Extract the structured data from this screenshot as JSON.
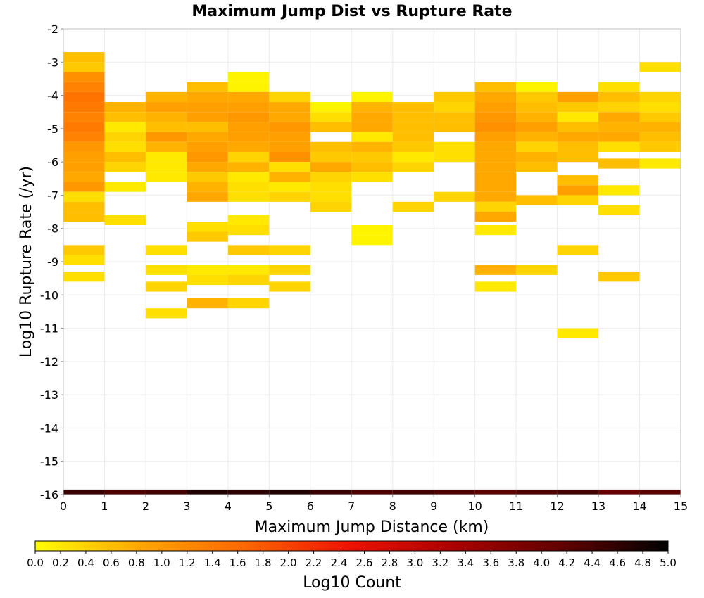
{
  "chart_data": {
    "type": "heatmap",
    "title": "Maximum Jump Dist vs Rupture Rate",
    "xlabel": "Maximum Jump Distance (km)",
    "ylabel": "Log10 Rupture Rate (/yr)",
    "xlim": [
      0,
      15
    ],
    "ylim": [
      -16,
      -2
    ],
    "x_ticks": [
      "0",
      "1",
      "2",
      "3",
      "4",
      "5",
      "6",
      "7",
      "8",
      "9",
      "10",
      "11",
      "12",
      "13",
      "14",
      "15"
    ],
    "y_ticks": [
      "-2",
      "-3",
      "-4",
      "-5",
      "-6",
      "-7",
      "-8",
      "-9",
      "-10",
      "-11",
      "-12",
      "-13",
      "-14",
      "-15",
      "-16"
    ],
    "x_bin_width": 1,
    "y_bin_height": 0.3,
    "grid": true,
    "colorbar": {
      "label": "Log10 Count",
      "min": 0.0,
      "max": 5.0,
      "ticks": [
        "0.0",
        "0.2",
        "0.4",
        "0.6",
        "0.8",
        "1.0",
        "1.2",
        "1.4",
        "1.6",
        "1.8",
        "2.0",
        "2.2",
        "2.4",
        "2.6",
        "2.8",
        "3.0",
        "3.2",
        "3.4",
        "3.6",
        "3.8",
        "4.0",
        "4.2",
        "4.4",
        "4.6",
        "4.8",
        "5.0"
      ],
      "colors": [
        "#ffff00",
        "#ffa500",
        "#ff6600",
        "#ee1100",
        "#aa0000",
        "#600000",
        "#000000"
      ]
    },
    "cells": [
      {
        "x": 0,
        "y0": -3.0,
        "y1": -2.7,
        "v": 0.6
      },
      {
        "x": 0,
        "y0": -3.3,
        "y1": -3.0,
        "v": 0.5
      },
      {
        "x": 0,
        "y0": -3.6,
        "y1": -3.3,
        "v": 1.1
      },
      {
        "x": 0,
        "y0": -3.9,
        "y1": -3.6,
        "v": 1.3
      },
      {
        "x": 0,
        "y0": -4.2,
        "y1": -3.9,
        "v": 1.5
      },
      {
        "x": 0,
        "y0": -4.5,
        "y1": -4.2,
        "v": 1.4
      },
      {
        "x": 0,
        "y0": -4.8,
        "y1": -4.5,
        "v": 1.3
      },
      {
        "x": 0,
        "y0": -5.1,
        "y1": -4.8,
        "v": 1.4
      },
      {
        "x": 0,
        "y0": -5.4,
        "y1": -5.1,
        "v": 1.3
      },
      {
        "x": 0,
        "y0": -5.7,
        "y1": -5.4,
        "v": 1.0
      },
      {
        "x": 0,
        "y0": -6.0,
        "y1": -5.7,
        "v": 0.9
      },
      {
        "x": 0,
        "y0": -6.3,
        "y1": -6.0,
        "v": 0.9
      },
      {
        "x": 0,
        "y0": -6.6,
        "y1": -6.3,
        "v": 0.8
      },
      {
        "x": 0,
        "y0": -6.9,
        "y1": -6.6,
        "v": 1.0
      },
      {
        "x": 0,
        "y0": -7.2,
        "y1": -6.9,
        "v": 0.3
      },
      {
        "x": 0,
        "y0": -7.5,
        "y1": -7.2,
        "v": 0.6
      },
      {
        "x": 0,
        "y0": -7.8,
        "y1": -7.5,
        "v": 0.6
      },
      {
        "x": 0,
        "y0": -8.8,
        "y1": -8.5,
        "v": 0.5
      },
      {
        "x": 0,
        "y0": -9.1,
        "y1": -8.8,
        "v": 0.3
      },
      {
        "x": 0,
        "y0": -9.6,
        "y1": -9.3,
        "v": 0.3
      },
      {
        "x": 1,
        "y0": -4.5,
        "y1": -4.2,
        "v": 0.7
      },
      {
        "x": 1,
        "y0": -4.8,
        "y1": -4.5,
        "v": 0.6
      },
      {
        "x": 1,
        "y0": -5.1,
        "y1": -4.8,
        "v": 0.2
      },
      {
        "x": 1,
        "y0": -5.4,
        "y1": -5.1,
        "v": 0.4
      },
      {
        "x": 1,
        "y0": -5.7,
        "y1": -5.4,
        "v": 0.3
      },
      {
        "x": 1,
        "y0": -6.0,
        "y1": -5.7,
        "v": 0.6
      },
      {
        "x": 1,
        "y0": -6.3,
        "y1": -6.0,
        "v": 0.4
      },
      {
        "x": 1,
        "y0": -6.9,
        "y1": -6.6,
        "v": 0.2
      },
      {
        "x": 1,
        "y0": -7.9,
        "y1": -7.6,
        "v": 0.3
      },
      {
        "x": 2,
        "y0": -4.2,
        "y1": -3.9,
        "v": 0.7
      },
      {
        "x": 2,
        "y0": -4.5,
        "y1": -4.2,
        "v": 0.9
      },
      {
        "x": 2,
        "y0": -4.8,
        "y1": -4.5,
        "v": 0.7
      },
      {
        "x": 2,
        "y0": -5.1,
        "y1": -4.8,
        "v": 0.6
      },
      {
        "x": 2,
        "y0": -5.4,
        "y1": -5.1,
        "v": 1.0
      },
      {
        "x": 2,
        "y0": -5.7,
        "y1": -5.4,
        "v": 0.7
      },
      {
        "x": 2,
        "y0": -6.0,
        "y1": -5.7,
        "v": 0.2
      },
      {
        "x": 2,
        "y0": -6.3,
        "y1": -6.0,
        "v": 0.2
      },
      {
        "x": 2,
        "y0": -6.6,
        "y1": -6.3,
        "v": 0.2
      },
      {
        "x": 2,
        "y0": -8.8,
        "y1": -8.5,
        "v": 0.3
      },
      {
        "x": 2,
        "y0": -9.4,
        "y1": -9.1,
        "v": 0.3
      },
      {
        "x": 2,
        "y0": -9.9,
        "y1": -9.6,
        "v": 0.4
      },
      {
        "x": 2,
        "y0": -10.7,
        "y1": -10.4,
        "v": 0.3
      },
      {
        "x": 3,
        "y0": -3.9,
        "y1": -3.6,
        "v": 0.6
      },
      {
        "x": 3,
        "y0": -4.2,
        "y1": -3.9,
        "v": 0.8
      },
      {
        "x": 3,
        "y0": -4.5,
        "y1": -4.2,
        "v": 0.9
      },
      {
        "x": 3,
        "y0": -4.8,
        "y1": -4.5,
        "v": 0.9
      },
      {
        "x": 3,
        "y0": -5.1,
        "y1": -4.8,
        "v": 0.6
      },
      {
        "x": 3,
        "y0": -5.4,
        "y1": -5.1,
        "v": 0.8
      },
      {
        "x": 3,
        "y0": -5.7,
        "y1": -5.4,
        "v": 0.9
      },
      {
        "x": 3,
        "y0": -6.0,
        "y1": -5.7,
        "v": 1.0
      },
      {
        "x": 3,
        "y0": -6.3,
        "y1": -6.0,
        "v": 0.8
      },
      {
        "x": 3,
        "y0": -6.6,
        "y1": -6.3,
        "v": 0.5
      },
      {
        "x": 3,
        "y0": -6.9,
        "y1": -6.6,
        "v": 0.7
      },
      {
        "x": 3,
        "y0": -7.2,
        "y1": -6.9,
        "v": 0.8
      },
      {
        "x": 3,
        "y0": -8.1,
        "y1": -7.8,
        "v": 0.3
      },
      {
        "x": 3,
        "y0": -8.4,
        "y1": -8.1,
        "v": 0.5
      },
      {
        "x": 3,
        "y0": -9.4,
        "y1": -9.1,
        "v": 0.2
      },
      {
        "x": 3,
        "y0": -9.7,
        "y1": -9.4,
        "v": 0.3
      },
      {
        "x": 3,
        "y0": -10.4,
        "y1": -10.1,
        "v": 0.7
      },
      {
        "x": 4,
        "y0": -3.6,
        "y1": -3.3,
        "v": 0.1
      },
      {
        "x": 4,
        "y0": -3.9,
        "y1": -3.6,
        "v": 0.1
      },
      {
        "x": 4,
        "y0": -4.2,
        "y1": -3.9,
        "v": 0.8
      },
      {
        "x": 4,
        "y0": -4.5,
        "y1": -4.2,
        "v": 0.9
      },
      {
        "x": 4,
        "y0": -4.8,
        "y1": -4.5,
        "v": 1.0
      },
      {
        "x": 4,
        "y0": -5.1,
        "y1": -4.8,
        "v": 0.9
      },
      {
        "x": 4,
        "y0": -5.4,
        "y1": -5.1,
        "v": 0.9
      },
      {
        "x": 4,
        "y0": -5.7,
        "y1": -5.4,
        "v": 0.8
      },
      {
        "x": 4,
        "y0": -6.0,
        "y1": -5.7,
        "v": 0.4
      },
      {
        "x": 4,
        "y0": -6.3,
        "y1": -6.0,
        "v": 0.7
      },
      {
        "x": 4,
        "y0": -6.6,
        "y1": -6.3,
        "v": 0.2
      },
      {
        "x": 4,
        "y0": -6.9,
        "y1": -6.6,
        "v": 0.3
      },
      {
        "x": 4,
        "y0": -7.2,
        "y1": -6.9,
        "v": 0.3
      },
      {
        "x": 4,
        "y0": -7.9,
        "y1": -7.6,
        "v": 0.2
      },
      {
        "x": 4,
        "y0": -8.2,
        "y1": -7.9,
        "v": 0.3
      },
      {
        "x": 4,
        "y0": -8.8,
        "y1": -8.5,
        "v": 0.5
      },
      {
        "x": 4,
        "y0": -9.4,
        "y1": -9.1,
        "v": 0.2
      },
      {
        "x": 4,
        "y0": -9.7,
        "y1": -9.4,
        "v": 0.4
      },
      {
        "x": 4,
        "y0": -10.4,
        "y1": -10.1,
        "v": 0.4
      },
      {
        "x": 5,
        "y0": -4.2,
        "y1": -3.9,
        "v": 0.4
      },
      {
        "x": 5,
        "y0": -4.5,
        "y1": -4.2,
        "v": 0.8
      },
      {
        "x": 5,
        "y0": -4.8,
        "y1": -4.5,
        "v": 0.8
      },
      {
        "x": 5,
        "y0": -5.1,
        "y1": -4.8,
        "v": 1.0
      },
      {
        "x": 5,
        "y0": -5.4,
        "y1": -5.1,
        "v": 0.9
      },
      {
        "x": 5,
        "y0": -5.7,
        "y1": -5.4,
        "v": 0.9
      },
      {
        "x": 5,
        "y0": -6.0,
        "y1": -5.7,
        "v": 1.1
      },
      {
        "x": 5,
        "y0": -6.3,
        "y1": -6.0,
        "v": 0.3
      },
      {
        "x": 5,
        "y0": -6.6,
        "y1": -6.3,
        "v": 0.7
      },
      {
        "x": 5,
        "y0": -6.9,
        "y1": -6.6,
        "v": 0.2
      },
      {
        "x": 5,
        "y0": -7.2,
        "y1": -6.9,
        "v": 0.4
      },
      {
        "x": 5,
        "y0": -8.8,
        "y1": -8.5,
        "v": 0.4
      },
      {
        "x": 5,
        "y0": -9.4,
        "y1": -9.1,
        "v": 0.4
      },
      {
        "x": 5,
        "y0": -9.9,
        "y1": -9.6,
        "v": 0.4
      },
      {
        "x": 6,
        "y0": -4.5,
        "y1": -4.2,
        "v": 0.1
      },
      {
        "x": 6,
        "y0": -4.8,
        "y1": -4.5,
        "v": 0.3
      },
      {
        "x": 6,
        "y0": -5.1,
        "y1": -4.8,
        "v": 0.6
      },
      {
        "x": 6,
        "y0": -5.7,
        "y1": -5.4,
        "v": 0.6
      },
      {
        "x": 6,
        "y0": -6.0,
        "y1": -5.7,
        "v": 0.5
      },
      {
        "x": 6,
        "y0": -6.3,
        "y1": -6.0,
        "v": 0.8
      },
      {
        "x": 6,
        "y0": -6.6,
        "y1": -6.3,
        "v": 0.4
      },
      {
        "x": 6,
        "y0": -6.9,
        "y1": -6.6,
        "v": 0.3
      },
      {
        "x": 6,
        "y0": -7.2,
        "y1": -6.9,
        "v": 0.3
      },
      {
        "x": 6,
        "y0": -7.5,
        "y1": -7.2,
        "v": 0.4
      },
      {
        "x": 7,
        "y0": -4.2,
        "y1": -3.9,
        "v": 0.1
      },
      {
        "x": 7,
        "y0": -4.5,
        "y1": -4.2,
        "v": 0.7
      },
      {
        "x": 7,
        "y0": -4.8,
        "y1": -4.5,
        "v": 0.8
      },
      {
        "x": 7,
        "y0": -5.1,
        "y1": -4.8,
        "v": 0.8
      },
      {
        "x": 7,
        "y0": -5.4,
        "y1": -5.1,
        "v": 0.2
      },
      {
        "x": 7,
        "y0": -5.7,
        "y1": -5.4,
        "v": 0.7
      },
      {
        "x": 7,
        "y0": -6.0,
        "y1": -5.7,
        "v": 0.5
      },
      {
        "x": 7,
        "y0": -6.3,
        "y1": -6.0,
        "v": 0.6
      },
      {
        "x": 7,
        "y0": -6.6,
        "y1": -6.3,
        "v": 0.3
      },
      {
        "x": 7,
        "y0": -8.2,
        "y1": -7.9,
        "v": 0.1
      },
      {
        "x": 7,
        "y0": -8.5,
        "y1": -8.2,
        "v": 0.1
      },
      {
        "x": 8,
        "y0": -4.5,
        "y1": -4.2,
        "v": 0.6
      },
      {
        "x": 8,
        "y0": -4.8,
        "y1": -4.5,
        "v": 0.6
      },
      {
        "x": 8,
        "y0": -5.1,
        "y1": -4.8,
        "v": 0.6
      },
      {
        "x": 8,
        "y0": -5.4,
        "y1": -5.1,
        "v": 0.6
      },
      {
        "x": 8,
        "y0": -5.7,
        "y1": -5.4,
        "v": 0.5
      },
      {
        "x": 8,
        "y0": -6.0,
        "y1": -5.7,
        "v": 0.2
      },
      {
        "x": 8,
        "y0": -6.3,
        "y1": -6.0,
        "v": 0.4
      },
      {
        "x": 8,
        "y0": -7.5,
        "y1": -7.2,
        "v": 0.4
      },
      {
        "x": 9,
        "y0": -4.2,
        "y1": -3.9,
        "v": 0.5
      },
      {
        "x": 9,
        "y0": -4.5,
        "y1": -4.2,
        "v": 0.4
      },
      {
        "x": 9,
        "y0": -4.8,
        "y1": -4.5,
        "v": 0.6
      },
      {
        "x": 9,
        "y0": -5.1,
        "y1": -4.8,
        "v": 0.6
      },
      {
        "x": 9,
        "y0": -5.7,
        "y1": -5.4,
        "v": 0.3
      },
      {
        "x": 9,
        "y0": -6.0,
        "y1": -5.7,
        "v": 0.3
      },
      {
        "x": 9,
        "y0": -7.2,
        "y1": -6.9,
        "v": 0.4
      },
      {
        "x": 10,
        "y0": -3.9,
        "y1": -3.6,
        "v": 0.6
      },
      {
        "x": 10,
        "y0": -4.2,
        "y1": -3.9,
        "v": 0.8
      },
      {
        "x": 10,
        "y0": -4.5,
        "y1": -4.2,
        "v": 0.9
      },
      {
        "x": 10,
        "y0": -4.8,
        "y1": -4.5,
        "v": 1.0
      },
      {
        "x": 10,
        "y0": -5.1,
        "y1": -4.8,
        "v": 1.1
      },
      {
        "x": 10,
        "y0": -5.4,
        "y1": -5.1,
        "v": 0.9
      },
      {
        "x": 10,
        "y0": -5.7,
        "y1": -5.4,
        "v": 0.8
      },
      {
        "x": 10,
        "y0": -6.0,
        "y1": -5.7,
        "v": 0.8
      },
      {
        "x": 10,
        "y0": -6.3,
        "y1": -6.0,
        "v": 0.8
      },
      {
        "x": 10,
        "y0": -6.6,
        "y1": -6.3,
        "v": 0.8
      },
      {
        "x": 10,
        "y0": -6.9,
        "y1": -6.6,
        "v": 0.8
      },
      {
        "x": 10,
        "y0": -7.2,
        "y1": -6.9,
        "v": 0.8
      },
      {
        "x": 10,
        "y0": -7.5,
        "y1": -7.2,
        "v": 0.4
      },
      {
        "x": 10,
        "y0": -7.8,
        "y1": -7.5,
        "v": 0.8
      },
      {
        "x": 10,
        "y0": -8.2,
        "y1": -7.9,
        "v": 0.2
      },
      {
        "x": 10,
        "y0": -9.4,
        "y1": -9.1,
        "v": 0.7
      },
      {
        "x": 10,
        "y0": -9.9,
        "y1": -9.6,
        "v": 0.2
      },
      {
        "x": 11,
        "y0": -3.9,
        "y1": -3.6,
        "v": 0.1
      },
      {
        "x": 11,
        "y0": -4.2,
        "y1": -3.9,
        "v": 0.5
      },
      {
        "x": 11,
        "y0": -4.5,
        "y1": -4.2,
        "v": 0.6
      },
      {
        "x": 11,
        "y0": -4.8,
        "y1": -4.5,
        "v": 0.7
      },
      {
        "x": 11,
        "y0": -5.1,
        "y1": -4.8,
        "v": 0.9
      },
      {
        "x": 11,
        "y0": -5.4,
        "y1": -5.1,
        "v": 0.7
      },
      {
        "x": 11,
        "y0": -5.7,
        "y1": -5.4,
        "v": 0.4
      },
      {
        "x": 11,
        "y0": -6.0,
        "y1": -5.7,
        "v": 0.7
      },
      {
        "x": 11,
        "y0": -6.3,
        "y1": -6.0,
        "v": 0.6
      },
      {
        "x": 11,
        "y0": -7.3,
        "y1": -7.0,
        "v": 0.6
      },
      {
        "x": 11,
        "y0": -9.4,
        "y1": -9.1,
        "v": 0.4
      },
      {
        "x": 12,
        "y0": -4.2,
        "y1": -3.9,
        "v": 0.9
      },
      {
        "x": 12,
        "y0": -4.5,
        "y1": -4.2,
        "v": 0.5
      },
      {
        "x": 12,
        "y0": -4.8,
        "y1": -4.5,
        "v": 0.2
      },
      {
        "x": 12,
        "y0": -5.1,
        "y1": -4.8,
        "v": 0.6
      },
      {
        "x": 12,
        "y0": -5.4,
        "y1": -5.1,
        "v": 0.8
      },
      {
        "x": 12,
        "y0": -5.7,
        "y1": -5.4,
        "v": 0.6
      },
      {
        "x": 12,
        "y0": -6.0,
        "y1": -5.7,
        "v": 0.6
      },
      {
        "x": 12,
        "y0": -6.7,
        "y1": -6.4,
        "v": 0.6
      },
      {
        "x": 12,
        "y0": -7.0,
        "y1": -6.7,
        "v": 0.9
      },
      {
        "x": 12,
        "y0": -7.3,
        "y1": -7.0,
        "v": 0.4
      },
      {
        "x": 12,
        "y0": -8.8,
        "y1": -8.5,
        "v": 0.4
      },
      {
        "x": 12,
        "y0": -11.3,
        "y1": -11.0,
        "v": 0.2
      },
      {
        "x": 13,
        "y0": -3.9,
        "y1": -3.6,
        "v": 0.3
      },
      {
        "x": 13,
        "y0": -4.2,
        "y1": -3.9,
        "v": 0.6
      },
      {
        "x": 13,
        "y0": -4.5,
        "y1": -4.2,
        "v": 0.4
      },
      {
        "x": 13,
        "y0": -4.8,
        "y1": -4.5,
        "v": 0.8
      },
      {
        "x": 13,
        "y0": -5.1,
        "y1": -4.8,
        "v": 0.7
      },
      {
        "x": 13,
        "y0": -5.4,
        "y1": -5.1,
        "v": 0.8
      },
      {
        "x": 13,
        "y0": -5.7,
        "y1": -5.4,
        "v": 0.3
      },
      {
        "x": 13,
        "y0": -6.2,
        "y1": -5.9,
        "v": 0.6
      },
      {
        "x": 13,
        "y0": -7.0,
        "y1": -6.7,
        "v": 0.2
      },
      {
        "x": 13,
        "y0": -7.6,
        "y1": -7.3,
        "v": 0.3
      },
      {
        "x": 13,
        "y0": -9.6,
        "y1": -9.3,
        "v": 0.5
      },
      {
        "x": 14,
        "y0": -3.3,
        "y1": -3.0,
        "v": 0.3
      },
      {
        "x": 14,
        "y0": -4.2,
        "y1": -3.9,
        "v": 0.4
      },
      {
        "x": 14,
        "y0": -4.5,
        "y1": -4.2,
        "v": 0.3
      },
      {
        "x": 14,
        "y0": -4.8,
        "y1": -4.5,
        "v": 0.5
      },
      {
        "x": 14,
        "y0": -5.1,
        "y1": -4.8,
        "v": 0.7
      },
      {
        "x": 14,
        "y0": -5.4,
        "y1": -5.1,
        "v": 0.6
      },
      {
        "x": 14,
        "y0": -5.7,
        "y1": -5.4,
        "v": 0.5
      },
      {
        "x": 14,
        "y0": -6.2,
        "y1": -5.9,
        "v": 0.2
      }
    ],
    "bottom_row": {
      "y0": -16.0,
      "y1": -15.85,
      "values": [
        4.5,
        4.3,
        4.4,
        4.7,
        4.6,
        4.7,
        4.5,
        4.3,
        4.4,
        4.3,
        4.2,
        4.3,
        4.4,
        4.1,
        4.2
      ]
    }
  }
}
